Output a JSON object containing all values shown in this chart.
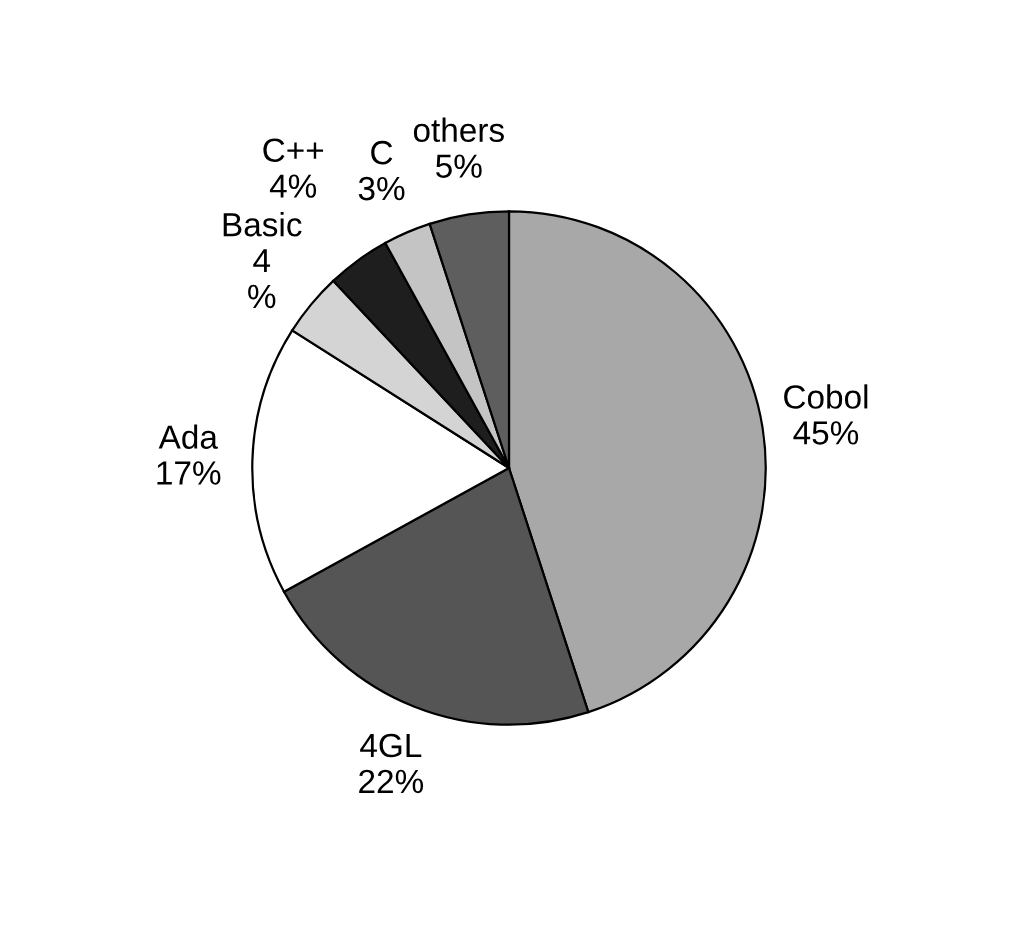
{
  "chart_data": {
    "type": "pie",
    "categories": [
      "Cobol",
      "4GL",
      "Ada",
      "Basic",
      "C++",
      "C",
      "others"
    ],
    "values": [
      45,
      22,
      17,
      4,
      4,
      3,
      5
    ],
    "value_labels": [
      "45%",
      "22%",
      "17%",
      "4\n%",
      "4%",
      "3%",
      "5%"
    ],
    "colors": [
      "#a8a8a8",
      "#555555",
      "#ffffff",
      "#d4d4d4",
      "#1e1e1e",
      "#c4c4c4",
      "#5e5e5e"
    ]
  }
}
